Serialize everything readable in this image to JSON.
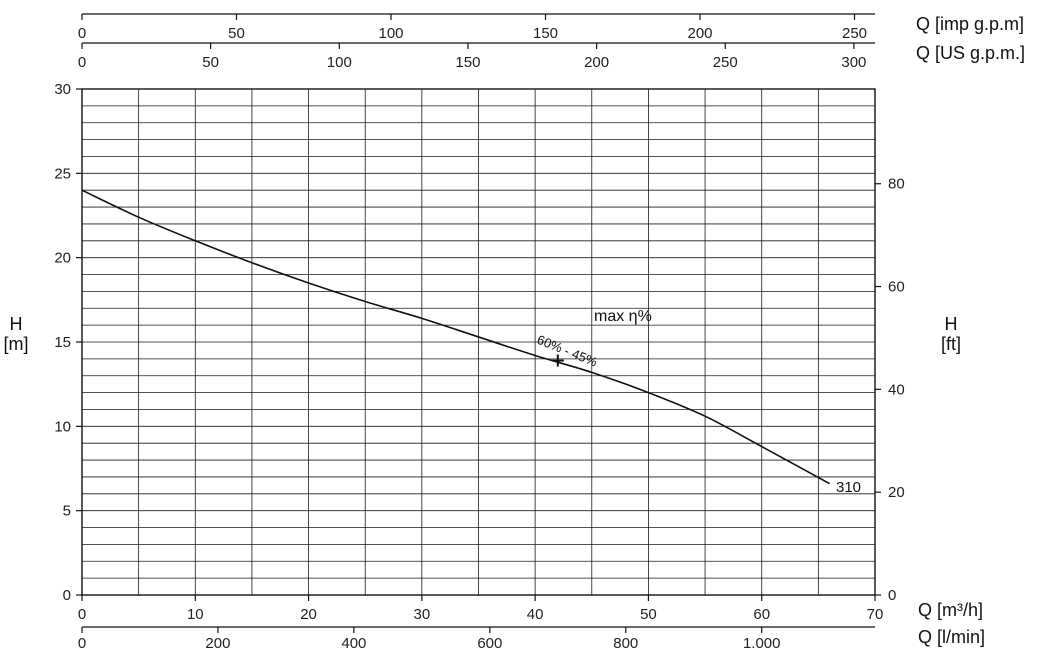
{
  "chart_data": {
    "type": "line",
    "x_axis_primary": {
      "label": "Q [m³/h]",
      "range": [
        0,
        70
      ],
      "ticks": [
        0,
        10,
        20,
        30,
        40,
        50,
        60,
        70
      ]
    },
    "x_axis_lmin": {
      "label": "Q [l/min]",
      "ticks": [
        {
          "value": 0,
          "label": "0"
        },
        {
          "value": 200,
          "label": "200"
        },
        {
          "value": 400,
          "label": "400"
        },
        {
          "value": 600,
          "label": "600"
        },
        {
          "value": 800,
          "label": "800"
        },
        {
          "value": 1000,
          "label": "1.000"
        }
      ]
    },
    "x_axis_us_gpm": {
      "label": "Q [US g.p.m.]",
      "ticks": [
        0,
        50,
        100,
        150,
        200,
        250,
        300
      ]
    },
    "x_axis_imp_gpm": {
      "label": "Q [imp g.p.m]",
      "ticks": [
        0,
        50,
        100,
        150,
        200,
        250
      ]
    },
    "y_axis_m": {
      "label_top": "H",
      "label_bottom": "[m]",
      "range": [
        0,
        30
      ],
      "ticks": [
        0,
        5,
        10,
        15,
        20,
        25,
        30
      ]
    },
    "y_axis_ft": {
      "label_top": "H",
      "label_bottom": "[ft]",
      "ticks": [
        0,
        20,
        40,
        60,
        80
      ]
    },
    "grid": true,
    "series": [
      {
        "name": "310",
        "x": [
          0,
          5,
          10,
          15,
          20,
          25,
          30,
          35,
          40,
          45,
          50,
          55,
          60,
          66
        ],
        "y": [
          24.0,
          22.4,
          21.0,
          19.7,
          18.5,
          17.4,
          16.4,
          15.3,
          14.2,
          13.2,
          12.0,
          10.6,
          8.8,
          6.6
        ]
      }
    ],
    "annotations": {
      "max_eff_label": "max η%",
      "eff_range_label": "60% - 45%",
      "bep_marker": {
        "x": 42,
        "y": 13.9
      }
    }
  }
}
